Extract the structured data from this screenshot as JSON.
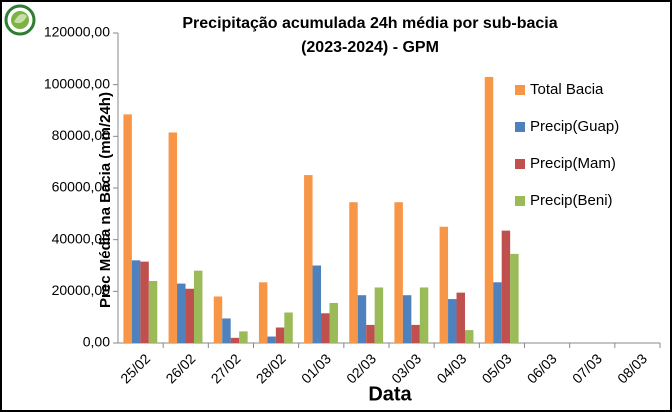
{
  "chart_data": {
    "type": "bar",
    "title": [
      "Precipitação acumulada 24h média por sub-bacia",
      "(2023-2024) - GPM"
    ],
    "x_label": "Data",
    "y_label": "Prec  Média na Bacia (mm/24h)",
    "categories": [
      "25/02",
      "26/02",
      "27/02",
      "28/02",
      "01/03",
      "02/03",
      "03/03",
      "04/03",
      "05/03",
      "06/03",
      "07/03",
      "08/03"
    ],
    "series": [
      {
        "name": "Total Bacia",
        "color": "#f79646",
        "values": [
          88500,
          81500,
          18000,
          23500,
          65000,
          54500,
          54500,
          45000,
          103000,
          null,
          null,
          null
        ]
      },
      {
        "name": "Precip(Guap)",
        "color": "#4f81bd",
        "values": [
          32000,
          23000,
          9500,
          2500,
          30000,
          18500,
          18500,
          17000,
          23500,
          null,
          null,
          null
        ]
      },
      {
        "name": "Precip(Mam)",
        "color": "#c0504d",
        "values": [
          31500,
          21000,
          2000,
          6000,
          11500,
          7000,
          7000,
          19500,
          43500,
          null,
          null,
          null
        ]
      },
      {
        "name": "Precip(Beni)",
        "color": "#9bbb59",
        "values": [
          24000,
          28000,
          4500,
          11800,
          15500,
          21500,
          21500,
          5000,
          34500,
          null,
          null,
          null
        ]
      }
    ],
    "ylim": [
      0,
      120000
    ],
    "yticks": [
      {
        "value": 0,
        "label": "0,00"
      },
      {
        "value": 20000,
        "label": "20000,00"
      },
      {
        "value": 40000,
        "label": "40000,00"
      },
      {
        "value": 60000,
        "label": "60000,00"
      },
      {
        "value": 80000,
        "label": "80000,00"
      },
      {
        "value": 100000,
        "label": "100000,00"
      },
      {
        "value": 120000,
        "label": "120000,00"
      }
    ],
    "legend": "right"
  }
}
